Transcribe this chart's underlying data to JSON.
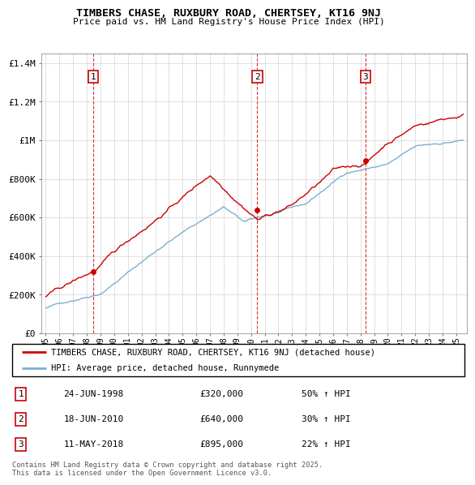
{
  "title": "TIMBERS CHASE, RUXBURY ROAD, CHERTSEY, KT16 9NJ",
  "subtitle": "Price paid vs. HM Land Registry's House Price Index (HPI)",
  "ylim": [
    0,
    1450000
  ],
  "yticks": [
    0,
    200000,
    400000,
    600000,
    800000,
    1000000,
    1200000,
    1400000
  ],
  "ytick_labels": [
    "£0",
    "£200K",
    "£400K",
    "£600K",
    "£800K",
    "£1M",
    "£1.2M",
    "£1.4M"
  ],
  "sale_dates": [
    1998.48,
    2010.46,
    2018.36
  ],
  "sale_prices": [
    320000,
    640000,
    895000
  ],
  "sale_labels": [
    "1",
    "2",
    "3"
  ],
  "red_color": "#cc0000",
  "blue_color": "#7ab0d4",
  "dashed_color": "#cc0000",
  "legend_entries": [
    "TIMBERS CHASE, RUXBURY ROAD, CHERTSEY, KT16 9NJ (detached house)",
    "HPI: Average price, detached house, Runnymede"
  ],
  "table_rows": [
    [
      "1",
      "24-JUN-1998",
      "£320,000",
      "50% ↑ HPI"
    ],
    [
      "2",
      "18-JUN-2010",
      "£640,000",
      "30% ↑ HPI"
    ],
    [
      "3",
      "11-MAY-2018",
      "£895,000",
      "22% ↑ HPI"
    ]
  ],
  "footer": "Contains HM Land Registry data © Crown copyright and database right 2025.\nThis data is licensed under the Open Government Licence v3.0."
}
